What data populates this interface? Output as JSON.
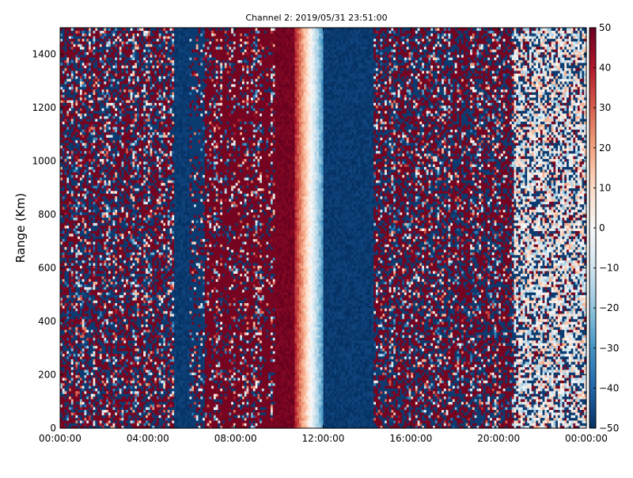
{
  "chart_data": {
    "type": "heatmap",
    "title": "Channel 2: 2019/05/31 23:51:00",
    "xlabel": "",
    "ylabel": "Range (Km)",
    "x_tick_labels": [
      "00:00:00",
      "04:00:00",
      "08:00:00",
      "12:00:00",
      "16:00:00",
      "20:00:00",
      "00:00:00"
    ],
    "xlim_hours": [
      0,
      24
    ],
    "y_ticks": [
      0,
      200,
      400,
      600,
      800,
      1000,
      1200,
      1400
    ],
    "ylim": [
      0,
      1500
    ],
    "colorbar": {
      "ticks": [
        50,
        40,
        30,
        20,
        10,
        0,
        -10,
        -20,
        -30,
        -40,
        -50
      ],
      "min": -50,
      "max": 50,
      "colormap": "RdBu_r",
      "stops": [
        "#053061",
        "#2166ac",
        "#4393c3",
        "#92c5de",
        "#d1e5f0",
        "#f7f7f7",
        "#fddbc7",
        "#f4a582",
        "#d6604d",
        "#b2182b",
        "#67001f"
      ]
    },
    "grid": false,
    "columns_per_hour": 10,
    "rows": 150,
    "time_bands": [
      {
        "from_h": 0.0,
        "to_h": 5.2,
        "pattern": "noise"
      },
      {
        "from_h": 5.2,
        "to_h": 5.9,
        "pattern": "low",
        "value": -48
      },
      {
        "from_h": 5.9,
        "to_h": 6.6,
        "pattern": "mostly-low"
      },
      {
        "from_h": 6.6,
        "to_h": 9.8,
        "pattern": "mostly-high"
      },
      {
        "from_h": 9.8,
        "to_h": 10.7,
        "pattern": "high",
        "value": 48
      },
      {
        "from_h": 10.7,
        "to_h": 12.0,
        "pattern": "gradient",
        "from_value": 40,
        "to_value": -30
      },
      {
        "from_h": 12.0,
        "to_h": 14.3,
        "pattern": "low",
        "value": -48
      },
      {
        "from_h": 14.3,
        "to_h": 20.7,
        "pattern": "noise"
      },
      {
        "from_h": 20.7,
        "to_h": 24.0,
        "pattern": "noise-low-amplitude"
      }
    ]
  }
}
